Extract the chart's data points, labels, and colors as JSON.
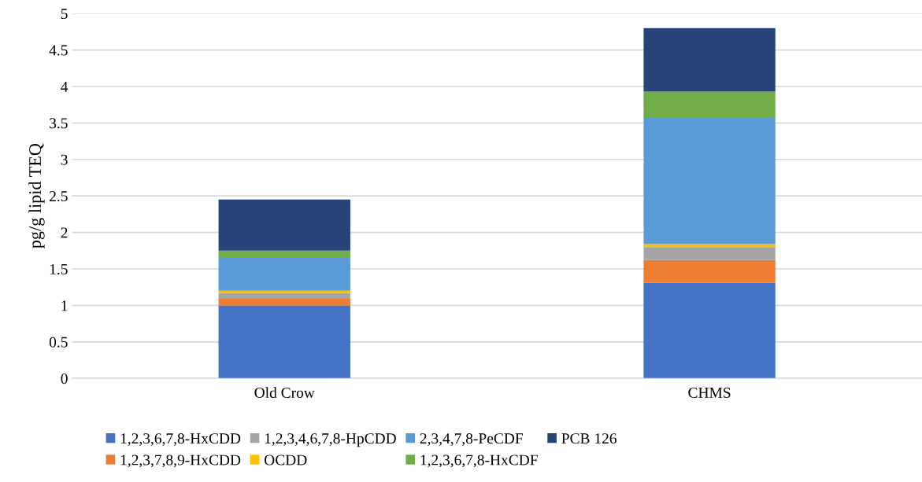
{
  "chart_data": {
    "type": "bar",
    "stacked": true,
    "ylabel": "pg/g lipid TEQ",
    "categories": [
      "Old Crow",
      "CHMS"
    ],
    "series": [
      {
        "name": "1,2,3,6,7,8-HxCDD",
        "color": "#4472c4",
        "values": [
          1.0,
          1.31
        ]
      },
      {
        "name": "1,2,3,7,8,9-HxCDD",
        "color": "#ed7d31",
        "values": [
          0.09,
          0.31
        ]
      },
      {
        "name": "1,2,3,4,6,7,8-HpCDD",
        "color": "#a5a5a5",
        "values": [
          0.08,
          0.18
        ]
      },
      {
        "name": "OCDD",
        "color": "#ffc000",
        "values": [
          0.03,
          0.04
        ]
      },
      {
        "name": "2,3,4,7,8-PeCDF",
        "color": "#5b9bd5",
        "values": [
          0.45,
          1.74
        ]
      },
      {
        "name": "1,2,3,6,7,8-HxCDF",
        "color": "#70ad47",
        "values": [
          0.1,
          0.35
        ]
      },
      {
        "name": "PCB 126",
        "color": "#264478",
        "values": [
          0.7,
          0.87
        ]
      }
    ],
    "ylim": [
      0,
      5
    ],
    "yticks": [
      0,
      0.5,
      1,
      1.5,
      2,
      2.5,
      3,
      3.5,
      4,
      4.5,
      5
    ],
    "grid": "y",
    "legend": "bottom"
  }
}
